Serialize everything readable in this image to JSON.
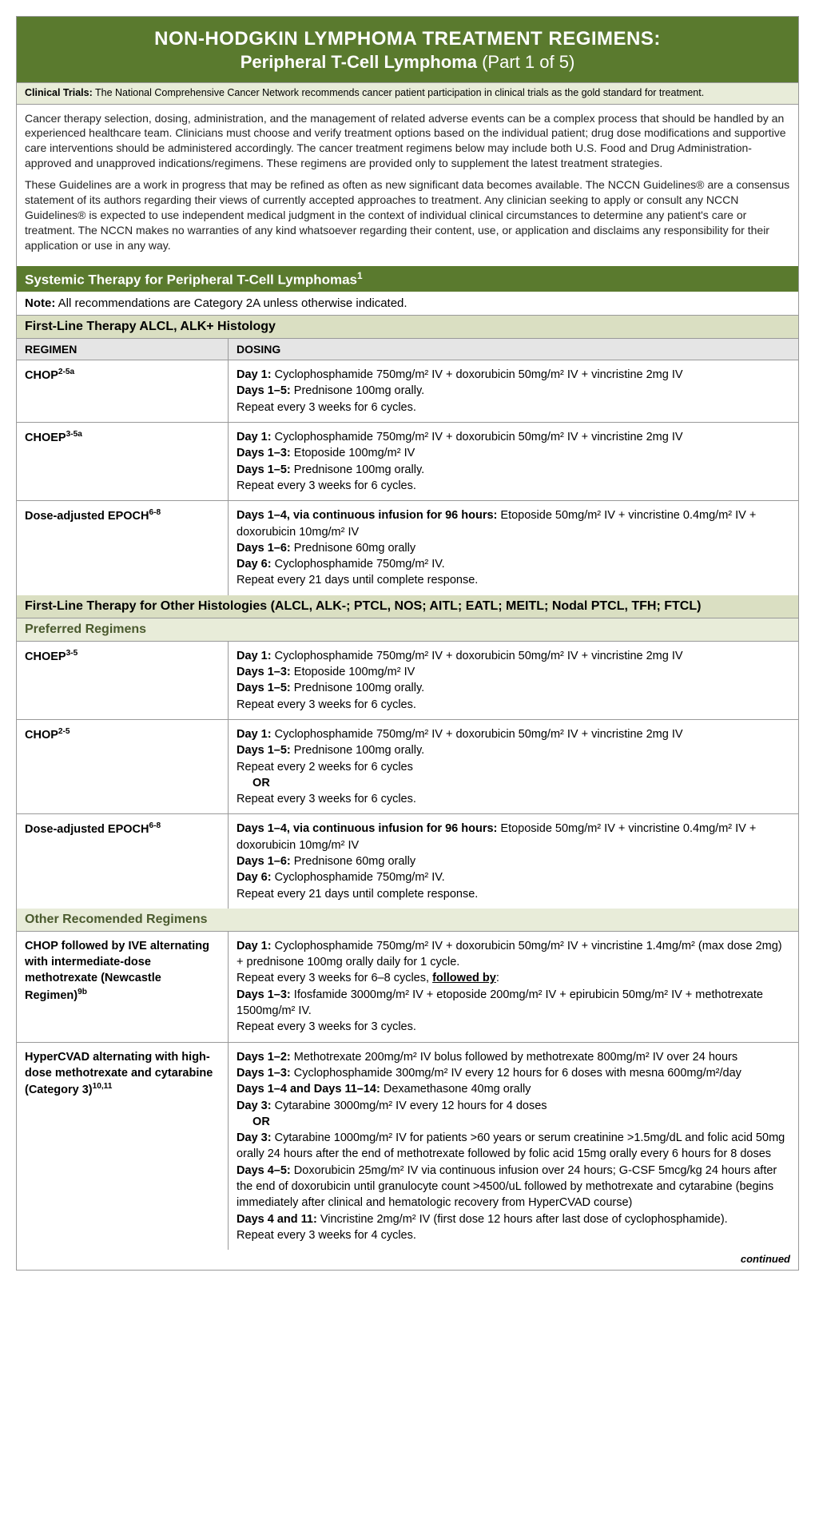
{
  "colors": {
    "header_bg": "#5a7a2e",
    "light_green_bg": "#e8ecd9",
    "cat_green_bg": "#dadfc2",
    "subcat_text": "#4a5a2e",
    "gray_bg": "#e5e5e5",
    "border": "#999999"
  },
  "title": {
    "main": "NON-HODGKIN LYMPHOMA TREATMENT REGIMENS:",
    "sub": "Peripheral T-Cell Lymphoma",
    "part": "(Part 1 of 5)"
  },
  "clinical_trials": {
    "label": "Clinical Trials:",
    "text": "The National Comprehensive Cancer Network recommends cancer patient participation in clinical trials as the gold standard for treatment."
  },
  "intro": {
    "p1": "Cancer therapy selection, dosing, administration, and the management of related adverse events can be a complex process that should be handled by an experienced healthcare team. Clinicians must choose and verify treatment options based on the individual patient; drug dose modifications and supportive care interventions should be administered accordingly. The cancer treatment regimens below may include both U.S. Food and Drug Administration-approved and unapproved indications/regimens. These regimens are provided only to supplement the latest treatment strategies.",
    "p2": "These Guidelines are a work in progress that may be refined as often as new significant data becomes available. The NCCN Guidelines® are a consensus statement of its authors regarding their views of currently accepted approaches to treatment. Any clinician seeking to apply or consult any NCCN Guidelines® is expected to use independent medical judgment in the context of individual clinical circumstances to determine any patient's care or treatment. The NCCN makes no warranties of any kind whatsoever regarding their content, use, or application and disclaims any responsibility for their application or use in any way."
  },
  "section_header": "Systemic Therapy for Peripheral T-Cell Lymphomas",
  "section_header_sup": "1",
  "note": {
    "label": "Note:",
    "text": "All recommendations are Category 2A unless otherwise indicated."
  },
  "cat1": {
    "header": "First-Line Therapy ALCL, ALK+ Histology",
    "col_regimen": "REGIMEN",
    "col_dosing": "DOSING",
    "rows": [
      {
        "regimen": "CHOP",
        "regimen_sup": "2-5a",
        "dosing_html": "<b>Day 1:</b> Cyclophosphamide 750mg/m² IV + doxorubicin 50mg/m² IV + vincristine 2mg IV<br><b>Days 1–5:</b> Prednisone 100mg orally.<br>Repeat every 3 weeks for 6 cycles."
      },
      {
        "regimen": "CHOEP",
        "regimen_sup": "3-5a",
        "dosing_html": "<b>Day 1:</b> Cyclophosphamide 750mg/m² IV + doxorubicin 50mg/m² IV + vincristine 2mg IV<br><b>Days 1–3:</b> Etoposide 100mg/m² IV<br><b>Days 1–5:</b> Prednisone 100mg orally.<br>Repeat every 3 weeks for 6 cycles."
      },
      {
        "regimen": "Dose-adjusted EPOCH",
        "regimen_sup": "6-8",
        "dosing_html": "<b>Days 1–4, via continuous infusion for 96 hours:</b> Etoposide 50mg/m² IV + vincristine 0.4mg/m² IV + doxorubicin 10mg/m² IV<br><b>Days 1–6:</b> Prednisone 60mg orally<br><b>Day 6:</b> Cyclophosphamide 750mg/m² IV.<br>Repeat every 21 days until complete response."
      }
    ]
  },
  "cat2": {
    "header": "First-Line Therapy for Other Histologies (ALCL, ALK-; PTCL, NOS; AITL; EATL; MEITL; Nodal PTCL, TFH; FTCL)",
    "sub_preferred": "Preferred Regimens",
    "preferred_rows": [
      {
        "regimen": "CHOEP",
        "regimen_sup": "3-5",
        "dosing_html": "<b>Day 1:</b> Cyclophosphamide 750mg/m² IV + doxorubicin 50mg/m² IV + vincristine 2mg IV<br><b>Days 1–3:</b> Etoposide 100mg/m² IV<br><b>Days 1–5:</b> Prednisone 100mg orally.<br>Repeat every 3 weeks for 6 cycles."
      },
      {
        "regimen": "CHOP",
        "regimen_sup": "2-5",
        "dosing_html": "<b>Day 1:</b> Cyclophosphamide 750mg/m² IV + doxorubicin 50mg/m² IV + vincristine 2mg IV<br><b>Days 1–5:</b> Prednisone 100mg orally.<br>Repeat every 2 weeks for 6 cycles<br><span class='or'>OR</span>Repeat every 3 weeks for 6 cycles."
      },
      {
        "regimen": "Dose-adjusted EPOCH",
        "regimen_sup": "6-8",
        "dosing_html": "<b>Days 1–4, via continuous infusion for 96 hours:</b> Etoposide 50mg/m² IV + vincristine 0.4mg/m² IV + doxorubicin 10mg/m² IV<br><b>Days 1–6:</b> Prednisone 60mg orally<br><b>Day 6:</b> Cyclophosphamide 750mg/m² IV.<br>Repeat every 21 days until complete response."
      }
    ],
    "sub_other": "Other Recomended Regimens",
    "other_rows": [
      {
        "regimen_html": "CHOP followed by IVE alternating with intermediate-dose methotrexate (Newcastle Regimen)<sup>9b</sup>",
        "dosing_html": "<b>Day 1:</b> Cyclophosphamide 750mg/m² IV + doxorubicin 50mg/m² IV + vincristine 1.4mg/m² (max dose 2mg) + prednisone 100mg orally daily for 1 cycle.<br>Repeat every 3 weeks for 6–8 cycles, <span class='fb'>followed by</span>:<br><b>Days 1–3:</b> Ifosfamide 3000mg/m² IV + etoposide 200mg/m² IV + epirubicin 50mg/m² IV + methotrexate 1500mg/m² IV.<br>Repeat every 3 weeks for 3 cycles."
      },
      {
        "regimen_html": "HyperCVAD alternating with high-dose methotrexate and cytarabine (Category 3)<sup>10,11</sup>",
        "dosing_html": "<b>Days 1–2:</b> Methotrexate 200mg/m² IV bolus followed by methotrexate 800mg/m² IV over 24 hours<br><b>Days 1–3:</b> Cyclophosphamide 300mg/m² IV every 12 hours for 6 doses with mesna 600mg/m²/day<br><b>Days 1–4 and Days 11–14:</b> Dexamethasone 40mg orally<br><b>Day 3:</b> Cytarabine 3000mg/m² IV every 12 hours for 4 doses<br><span class='or'>OR</span><b>Day 3:</b> Cytarabine 1000mg/m² IV for patients >60 years or serum creatinine >1.5mg/dL and folic acid 50mg orally 24 hours after the end of methotrexate followed by folic acid 15mg orally every 6 hours for 8 doses<br><b>Days 4–5:</b> Doxorubicin 25mg/m² IV via continuous infusion over 24 hours; G-CSF 5mcg/kg 24 hours after the end of doxorubicin until granulocyte count >4500/uL followed by methotrexate and cytarabine (begins immediately after clinical and hematologic recovery from HyperCVAD course)<br><b>Days 4 and 11:</b> Vincristine 2mg/m² IV (first dose 12 hours after last dose of cyclophosphamide).<br>Repeat every 3 weeks for 4 cycles."
      }
    ]
  },
  "continued": "continued"
}
